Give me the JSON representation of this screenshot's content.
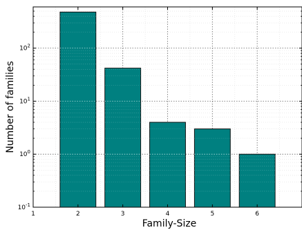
{
  "chart_data": {
    "type": "bar",
    "xlabel": "Family-Size",
    "ylabel": "Number of families",
    "y_scale": "log",
    "ylim": [
      0.1,
      600
    ],
    "xlim": [
      1,
      7
    ],
    "x_ticks": [
      1,
      2,
      3,
      4,
      5,
      6
    ],
    "x_tick_labels": [
      "1",
      "2",
      "3",
      "4",
      "5",
      "6"
    ],
    "y_ticks": [
      0.1,
      1,
      10,
      100
    ],
    "y_tick_labels": [
      {
        "base": "10",
        "exp": "-1"
      },
      {
        "base": "10",
        "exp": "0"
      },
      {
        "base": "10",
        "exp": "1"
      },
      {
        "base": "10",
        "exp": "2"
      }
    ],
    "bars": [
      {
        "x": 2,
        "value": 480
      },
      {
        "x": 3,
        "value": 42
      },
      {
        "x": 4,
        "value": 4
      },
      {
        "x": 5,
        "value": 3
      },
      {
        "x": 6,
        "value": 1
      }
    ],
    "bar_width": 0.8,
    "bar_color": "#008080",
    "grid": true
  }
}
